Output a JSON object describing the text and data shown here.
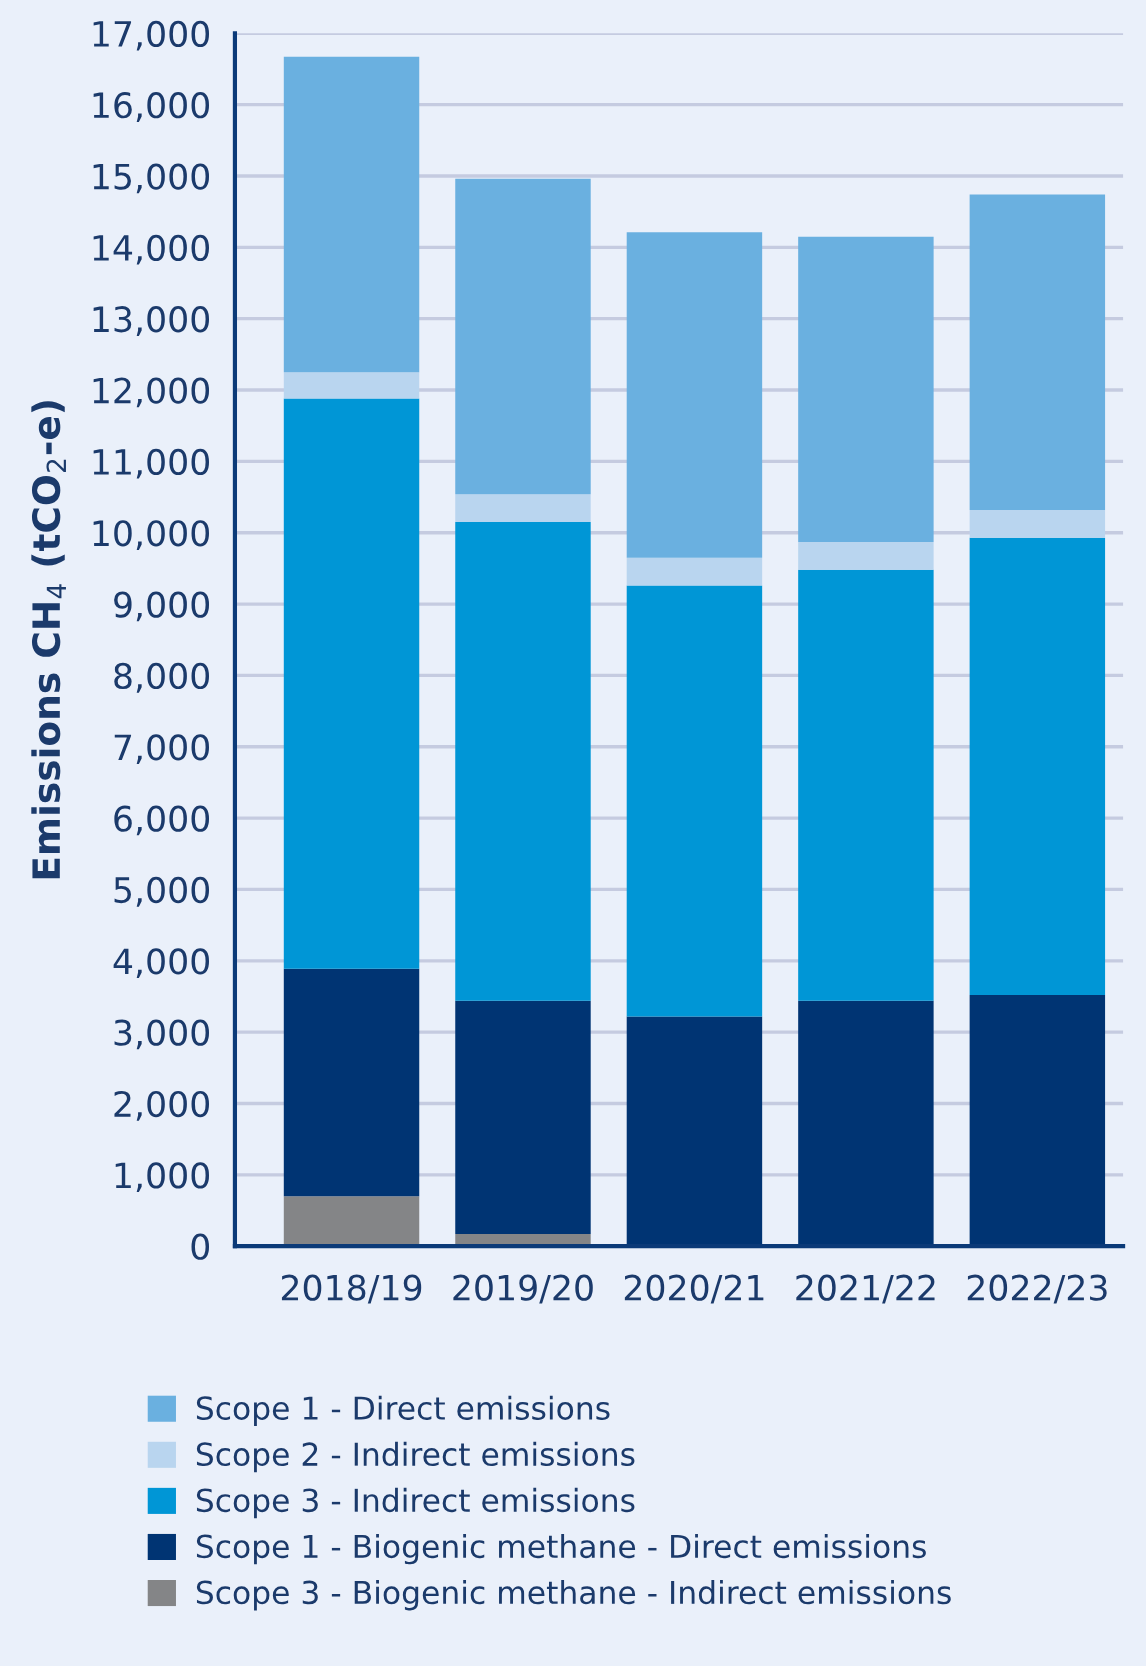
{
  "chart_data": {
    "type": "bar",
    "stacked": true,
    "ylabel": "Emissions CH$_{4}$ (tCO$_{2}$-e)",
    "categories": [
      "2018/19",
      "2019/20",
      "2020/21",
      "2021/22",
      "2022/23"
    ],
    "series": [
      {
        "name": "Scope 3 - Biogenic methane - Indirect emissions",
        "color": "#848587",
        "values": [
          700,
          170,
          0,
          0,
          0
        ]
      },
      {
        "name": "Scope 1 - Biogenic methane - Direct emissions",
        "color": "#003473",
        "values": [
          3190,
          3270,
          3220,
          3440,
          3520
        ]
      },
      {
        "name": "Scope 3 - Indirect emissions",
        "color": "#0096d6",
        "values": [
          7990,
          6710,
          6040,
          6040,
          6410
        ]
      },
      {
        "name": "Scope 2 - Indirect emissions",
        "color": "#b9d5ef",
        "values": [
          370,
          390,
          390,
          390,
          390
        ]
      },
      {
        "name": "Scope 1 - Direct emissions",
        "color": "#6ab0e0",
        "values": [
          4420,
          4420,
          4560,
          4280,
          4420
        ]
      }
    ],
    "ylim": [
      0,
      17000
    ],
    "yticks": [
      0,
      {
        "value": 1000,
        "label": "1,000"
      },
      {
        "value": 2000,
        "label": "2,000"
      },
      {
        "value": 3000,
        "label": "3,000"
      },
      {
        "value": 4000,
        "label": "4,000"
      },
      {
        "value": 5000,
        "label": "5,000"
      },
      {
        "value": 6000,
        "label": "6,000"
      },
      {
        "value": 7000,
        "label": "7,000"
      },
      {
        "value": 8000,
        "label": "8,000"
      },
      {
        "value": 9000,
        "label": "9,000"
      },
      {
        "value": 10000,
        "label": "10,000"
      },
      {
        "value": 11000,
        "label": "11,000"
      },
      {
        "value": 12000,
        "label": "12,000"
      },
      {
        "value": 13000,
        "label": "13,000"
      },
      {
        "value": 14000,
        "label": "14,000"
      },
      {
        "value": 15000,
        "label": "15,000"
      },
      {
        "value": 16000,
        "label": "16,000"
      },
      {
        "value": 17000,
        "label": "17,000"
      }
    ],
    "grid": "y",
    "legend": "bottom"
  }
}
